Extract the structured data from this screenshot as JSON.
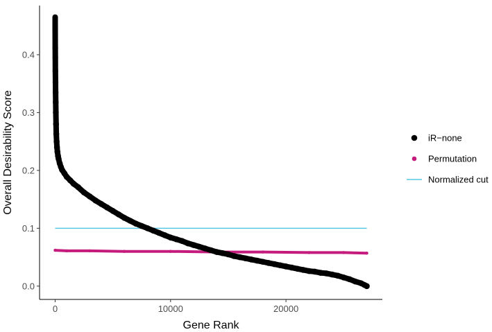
{
  "chart_data": {
    "type": "scatter",
    "title": "",
    "xlabel": "Gene Rank",
    "ylabel": "Overall Desirability Score",
    "xlim": [
      -1350,
      28350
    ],
    "ylim": [
      -0.023,
      0.485
    ],
    "x_ticks": [
      0,
      10000,
      20000
    ],
    "x_tick_labels": [
      "0",
      "10000",
      "20000"
    ],
    "y_ticks": [
      0.0,
      0.1,
      0.2,
      0.3,
      0.4
    ],
    "y_tick_labels": [
      "0.0",
      "0.1",
      "0.2",
      "0.3",
      "0.4"
    ],
    "grid": false,
    "legend_position": "right",
    "series": [
      {
        "name": "iR−none",
        "kind": "points",
        "color": "#000000",
        "x": [
          0,
          5,
          10,
          15,
          20,
          30,
          40,
          50,
          60,
          80,
          100,
          130,
          160,
          200,
          250,
          300,
          400,
          500,
          600,
          800,
          1000,
          1300,
          1600,
          2000,
          2500,
          3000,
          3500,
          4000,
          4500,
          5000,
          5500,
          6000,
          6500,
          7000,
          7500,
          8000,
          8500,
          9000,
          9500,
          10000,
          10500,
          11000,
          11500,
          12000,
          12500,
          13000,
          13500,
          14000,
          14500,
          15000,
          15500,
          16000,
          16500,
          17000,
          17500,
          18000,
          18500,
          19000,
          19500,
          20000,
          20500,
          21000,
          21500,
          22000,
          22500,
          23000,
          23500,
          24000,
          24500,
          25000,
          25500,
          26000,
          26500,
          26800,
          27000
        ],
        "y": [
          0.465,
          0.447,
          0.412,
          0.395,
          0.372,
          0.352,
          0.335,
          0.318,
          0.3,
          0.28,
          0.263,
          0.25,
          0.24,
          0.232,
          0.225,
          0.22,
          0.212,
          0.206,
          0.201,
          0.195,
          0.189,
          0.183,
          0.177,
          0.171,
          0.162,
          0.155,
          0.148,
          0.142,
          0.136,
          0.13,
          0.124,
          0.118,
          0.113,
          0.108,
          0.104,
          0.1,
          0.096,
          0.092,
          0.088,
          0.084,
          0.081,
          0.078,
          0.074,
          0.071,
          0.068,
          0.065,
          0.062,
          0.059,
          0.057,
          0.055,
          0.052,
          0.05,
          0.048,
          0.046,
          0.044,
          0.042,
          0.04,
          0.038,
          0.036,
          0.034,
          0.032,
          0.03,
          0.028,
          0.026,
          0.025,
          0.023,
          0.022,
          0.02,
          0.018,
          0.015,
          0.012,
          0.008,
          0.005,
          0.002,
          0.0
        ]
      },
      {
        "name": "Permutation",
        "kind": "points",
        "color": "#c51b7d",
        "x": [
          0,
          1000,
          3000,
          6000,
          10000,
          14000,
          18000,
          22000,
          25000,
          27000
        ],
        "y": [
          0.062,
          0.061,
          0.061,
          0.06,
          0.06,
          0.059,
          0.059,
          0.058,
          0.058,
          0.057
        ]
      },
      {
        "name": "Normalized cut",
        "kind": "line",
        "color": "#56c7e0",
        "x": [
          0,
          27000
        ],
        "y": [
          0.1,
          0.1
        ]
      }
    ]
  }
}
